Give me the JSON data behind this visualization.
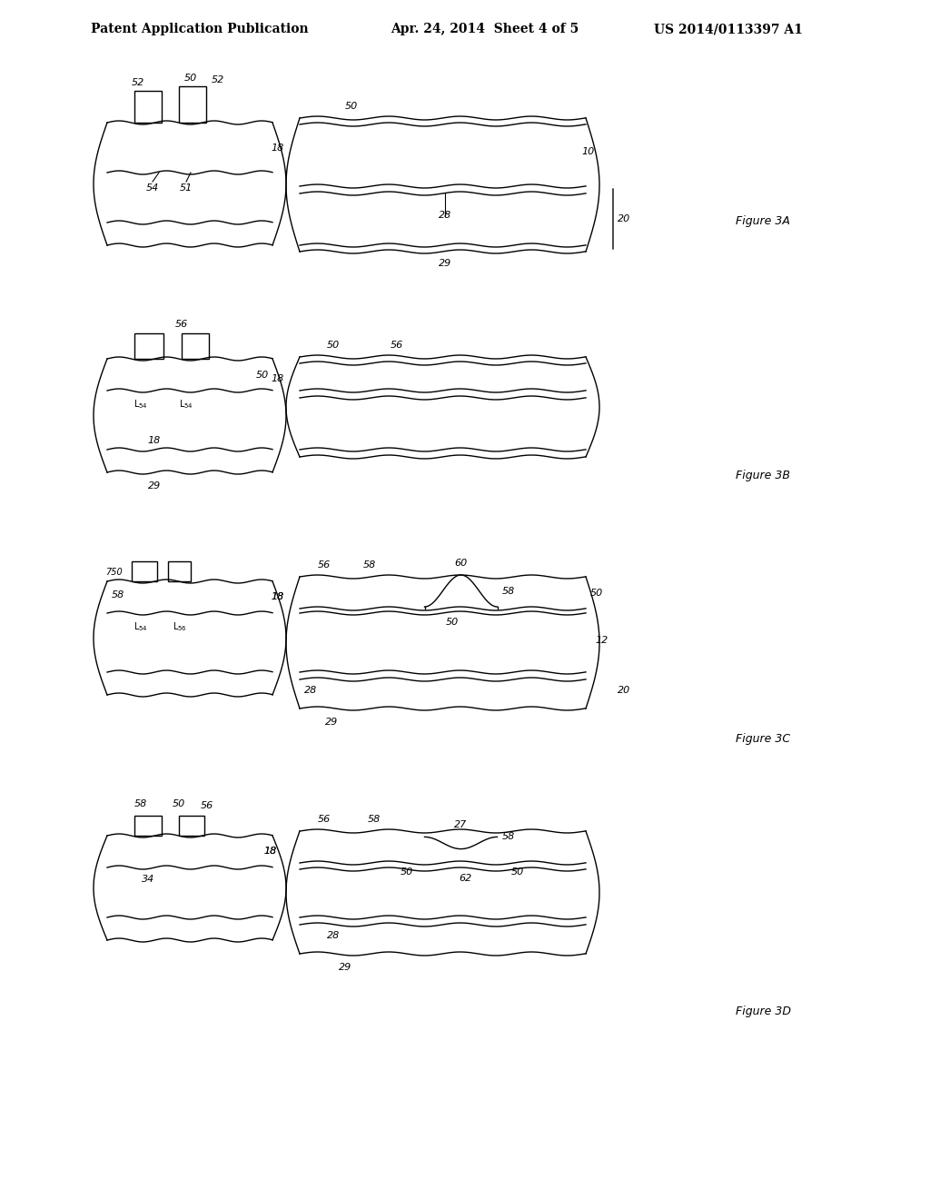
{
  "title_left": "Patent Application Publication",
  "title_center": "Apr. 24, 2014  Sheet 4 of 5",
  "title_right": "US 2014/0113397 A1",
  "background_color": "#ffffff",
  "line_color": "#000000",
  "figures": [
    "Figure 3A",
    "Figure 3B",
    "Figure 3C",
    "Figure 3D"
  ]
}
